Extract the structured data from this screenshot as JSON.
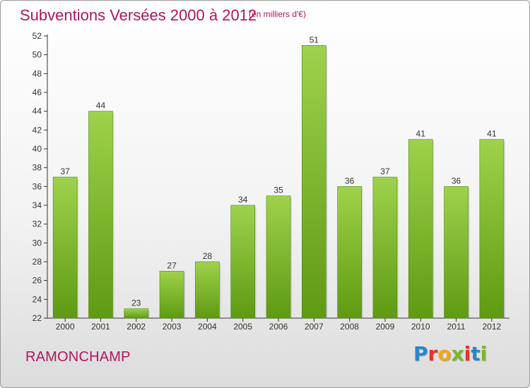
{
  "header": {
    "title": "Subventions Versées 2000 à 2012",
    "subtitle": "(en milliers d'€)"
  },
  "footer": {
    "commune": "RAMONCHAMP",
    "logo_letters": [
      "P",
      "r",
      "o",
      "x",
      "i",
      "t",
      "i"
    ],
    "logo_colors": [
      "#2a86c8",
      "#e3332a",
      "#f2a51a",
      "#7ab827",
      "#e3332a",
      "#2a86c8",
      "#7ab827"
    ]
  },
  "colors": {
    "title": "#b0165d",
    "bar_light": "#9fd24c",
    "bar_dark": "#5e9a12"
  },
  "chart_data": {
    "type": "bar",
    "title": "Subventions Versées 2000 à 2012",
    "subtitle": "(en milliers d'€)",
    "categories": [
      "2000",
      "2001",
      "2002",
      "2003",
      "2004",
      "2005",
      "2006",
      "2007",
      "2008",
      "2009",
      "2010",
      "2011",
      "2012"
    ],
    "values": [
      37,
      44,
      23,
      27,
      28,
      34,
      35,
      51,
      36,
      37,
      41,
      36,
      41
    ],
    "ylim": [
      22,
      52
    ],
    "yticks": [
      22,
      24,
      26,
      28,
      30,
      32,
      34,
      36,
      38,
      40,
      42,
      44,
      46,
      48,
      50,
      52
    ],
    "grid": false,
    "xlabel": "",
    "ylabel": ""
  }
}
